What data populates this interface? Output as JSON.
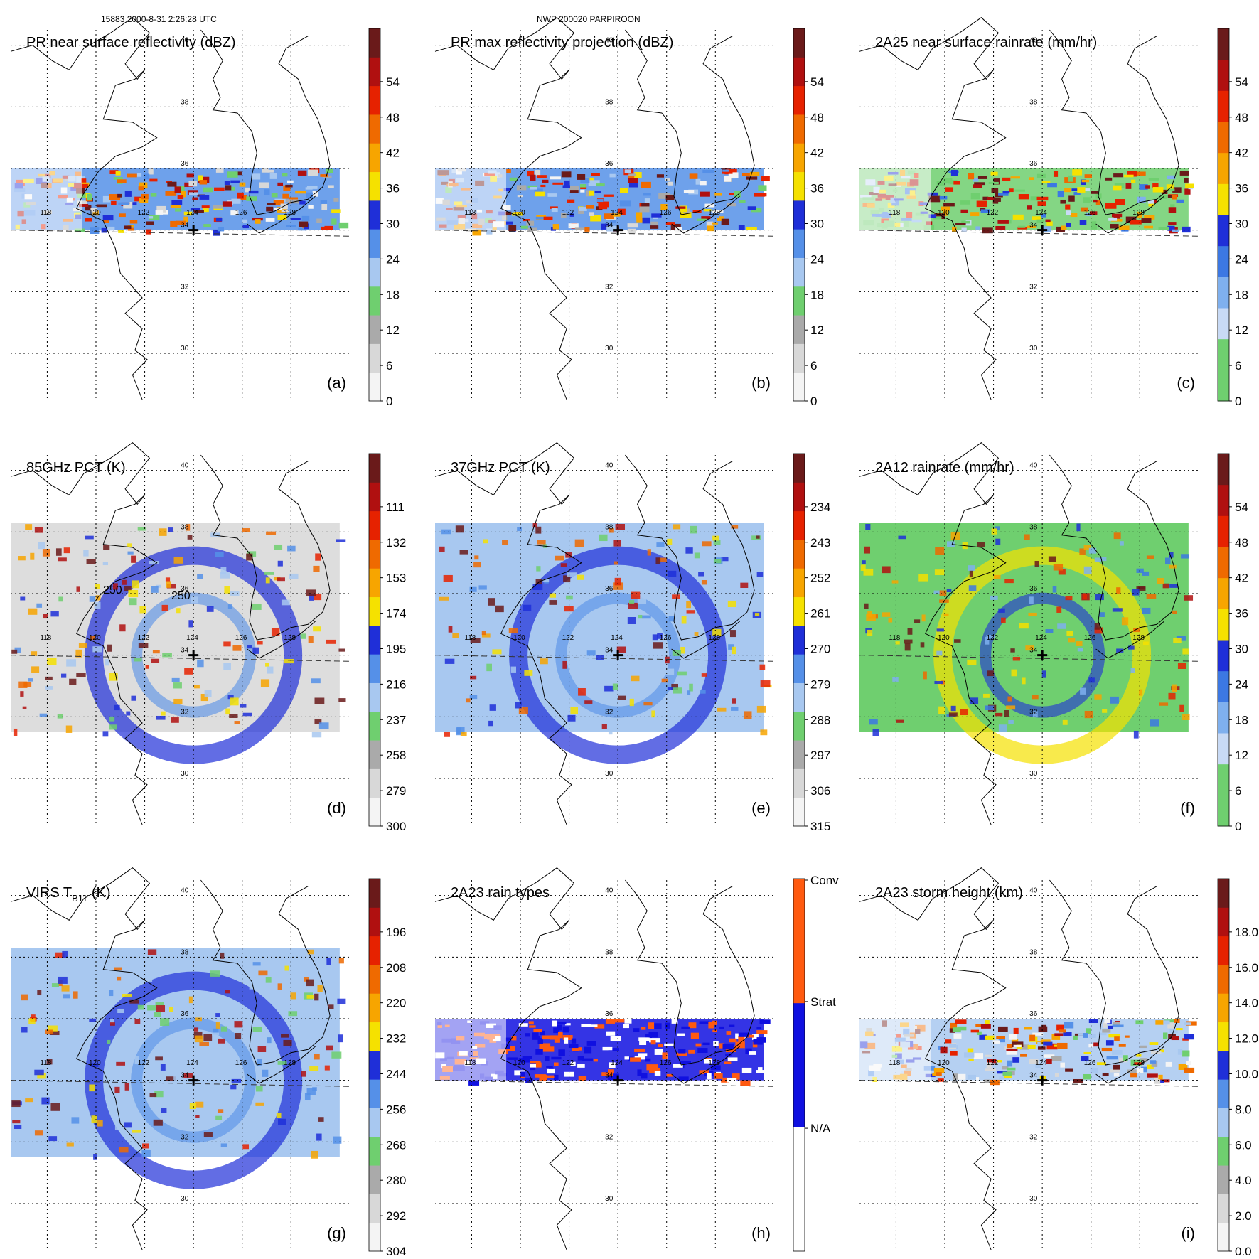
{
  "header": {
    "orbit_time": "15883 2000-8-31 2:26:28 UTC",
    "storm": "NWP 200020 PARPIROON"
  },
  "map": {
    "lat_labels": [
      "40",
      "38",
      "36",
      "34",
      "32",
      "30"
    ],
    "lon_labels": [
      "118",
      "120",
      "122",
      "124",
      "126",
      "128"
    ],
    "storm_center": {
      "lon": 124.0,
      "lat": 34.0
    }
  },
  "panels": [
    {
      "id": "a",
      "letter": "(a)",
      "title": "PR near surface reflectivity (dBZ)",
      "colorbar": [
        "0",
        "6",
        "12",
        "18",
        "24",
        "30",
        "36",
        "42",
        "48",
        "54"
      ],
      "contour_labels": [],
      "colors": [
        "#f4f4f4",
        "#d8d8d8",
        "#aaaaaa",
        "#6fcf6f",
        "#a8c8f0",
        "#5590e8",
        "#1f2fd8",
        "#f5e100",
        "#f7a500",
        "#ef6a00",
        "#e62200",
        "#b01010",
        "#6a1a1a"
      ]
    },
    {
      "id": "b",
      "letter": "(b)",
      "title": "PR max reflectivity projection (dBZ)",
      "colorbar": [
        "0",
        "6",
        "12",
        "18",
        "24",
        "30",
        "36",
        "42",
        "48",
        "54"
      ],
      "contour_labels": [],
      "colors": [
        "#f4f4f4",
        "#d8d8d8",
        "#aaaaaa",
        "#6fcf6f",
        "#a8c8f0",
        "#5590e8",
        "#1f2fd8",
        "#f5e100",
        "#f7a500",
        "#ef6a00",
        "#e62200",
        "#b01010",
        "#6a1a1a"
      ]
    },
    {
      "id": "c",
      "letter": "(c)",
      "title": "2A25 near surface rainrate (mm/hr)",
      "colorbar": [
        "0",
        "6",
        "12",
        "18",
        "24",
        "30",
        "36",
        "42",
        "48",
        "54"
      ],
      "contour_labels": [],
      "colors": [
        "#6fcf6f",
        "#6fcf6f",
        "#c8daf5",
        "#7fb0ee",
        "#3c78e3",
        "#1f2fd8",
        "#f5e100",
        "#f7a500",
        "#ef6a00",
        "#e62200",
        "#b01010",
        "#6a1a1a"
      ]
    },
    {
      "id": "d",
      "letter": "(d)",
      "title": "85GHz PCT (K)",
      "colorbar": [
        "300",
        "279",
        "258",
        "237",
        "216",
        "195",
        "174",
        "153",
        "132",
        "111"
      ],
      "contour_labels": [
        "250",
        "250"
      ],
      "colors": [
        "#f4f4f4",
        "#d8d8d8",
        "#aaaaaa",
        "#6fcf6f",
        "#a8c8f0",
        "#5590e8",
        "#1f2fd8",
        "#f5e100",
        "#f7a500",
        "#ef6a00",
        "#e62200",
        "#b01010",
        "#6a1a1a"
      ]
    },
    {
      "id": "e",
      "letter": "(e)",
      "title": "37GHz PCT (K)",
      "colorbar": [
        "315",
        "306",
        "297",
        "288",
        "279",
        "270",
        "261",
        "252",
        "243",
        "234"
      ],
      "contour_labels": [],
      "colors": [
        "#f4f4f4",
        "#d8d8d8",
        "#aaaaaa",
        "#6fcf6f",
        "#a8c8f0",
        "#5590e8",
        "#1f2fd8",
        "#f5e100",
        "#f7a500",
        "#ef6a00",
        "#e62200",
        "#b01010",
        "#6a1a1a"
      ]
    },
    {
      "id": "f",
      "letter": "(f)",
      "title": "2A12 rainrate (mm/hr)",
      "colorbar": [
        "0",
        "6",
        "12",
        "18",
        "24",
        "30",
        "36",
        "42",
        "48",
        "54"
      ],
      "contour_labels": [],
      "colors": [
        "#6fcf6f",
        "#6fcf6f",
        "#c8daf5",
        "#7fb0ee",
        "#3c78e3",
        "#1f2fd8",
        "#f5e100",
        "#f7a500",
        "#ef6a00",
        "#e62200",
        "#b01010",
        "#6a1a1a"
      ]
    },
    {
      "id": "g",
      "letter": "(g)",
      "title": "VIRS T",
      "title_sub": "B11",
      "title_tail": " (K)",
      "colorbar": [
        "304",
        "292",
        "280",
        "268",
        "256",
        "244",
        "232",
        "220",
        "208",
        "196"
      ],
      "contour_labels": [],
      "colors": [
        "#f4f4f4",
        "#d8d8d8",
        "#aaaaaa",
        "#6fcf6f",
        "#a8c8f0",
        "#5590e8",
        "#1f2fd8",
        "#f5e100",
        "#f7a500",
        "#ef6a00",
        "#e62200",
        "#b01010",
        "#6a1a1a"
      ]
    },
    {
      "id": "h",
      "letter": "(h)",
      "title": "2A23 rain types",
      "colorbar": [
        "N/A",
        "Strat",
        "Conv"
      ],
      "contour_labels": [],
      "colors": [
        "#ffffff",
        "#1010e0",
        "#ff5a10"
      ]
    },
    {
      "id": "i",
      "letter": "(i)",
      "title": "2A23 storm height (km)",
      "colorbar": [
        "0.0",
        "2.0",
        "4.0",
        "6.0",
        "8.0",
        "10.0",
        "12.0",
        "14.0",
        "16.0",
        "18.0"
      ],
      "contour_labels": [],
      "colors": [
        "#f4f4f4",
        "#d8d8d8",
        "#aaaaaa",
        "#6fcf6f",
        "#a8c8f0",
        "#5590e8",
        "#1f2fd8",
        "#f5e100",
        "#f7a500",
        "#ef6a00",
        "#e62200",
        "#b01010",
        "#6a1a1a"
      ]
    }
  ]
}
